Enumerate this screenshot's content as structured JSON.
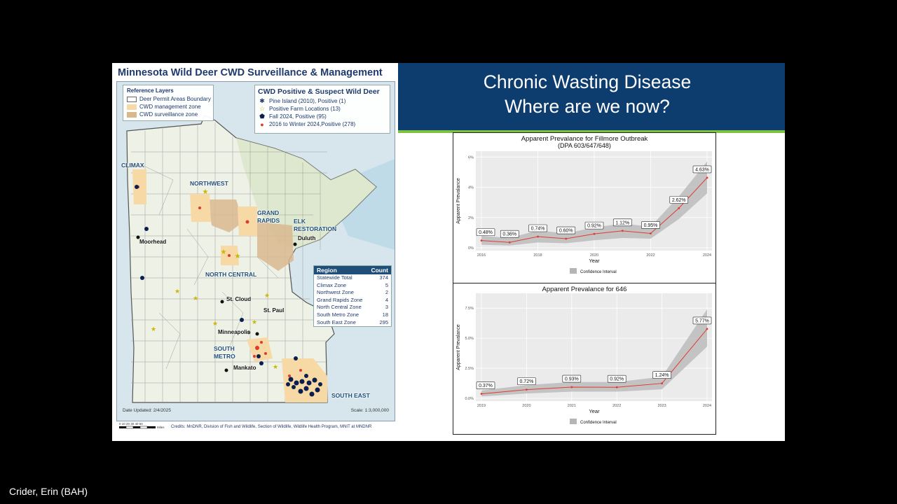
{
  "map": {
    "title": "Minnesota Wild Deer CWD Surveillance & Management",
    "reference_legend": {
      "title": "Reference Layers",
      "items": [
        {
          "label": "Deer Permit Areas Boundary",
          "color": "#ffffff"
        },
        {
          "label": "CWD management zone",
          "color": "#f7d9a6"
        },
        {
          "label": "CWD surveillance zone",
          "color": "#d9b88f"
        }
      ]
    },
    "cwd_legend": {
      "title": "CWD Positive & Suspect Wild Deer",
      "items": [
        {
          "symbol": "✱",
          "label": "Pine Island (2010), Positive (1)",
          "color": "#1f3a6b"
        },
        {
          "symbol": "☆",
          "label": "Positive Farm Locations (13)",
          "color": "#c9b800"
        },
        {
          "symbol": "⬟",
          "label": "Fall 2024, Positive (95)",
          "color": "#0b1f4f"
        },
        {
          "symbol": "●",
          "label": "2016 to Winter 2024,Positive (278)",
          "color": "#e03a2f"
        }
      ]
    },
    "region_table": {
      "header": [
        "Region",
        "Count"
      ],
      "rows": [
        [
          "Statewide Total",
          "374"
        ],
        [
          "Climax Zone",
          "5"
        ],
        [
          "Northwest Zone",
          "2"
        ],
        [
          "Grand Rapids Zone",
          "4"
        ],
        [
          "North Central Zone",
          "3"
        ],
        [
          "South Metro Zone",
          "18"
        ],
        [
          "South East Zone",
          "295"
        ]
      ]
    },
    "zone_labels": {
      "climax": "CLIMAX",
      "northwest": "NORTHWEST",
      "grand_rapids_1": "GRAND",
      "grand_rapids_2": "RAPIDS",
      "elk_1": "ELK",
      "elk_2": "RESTORATION",
      "north_central": "NORTH CENTRAL",
      "south_metro_1": "SOUTH",
      "south_metro_2": "METRO",
      "south_east": "SOUTH EAST"
    },
    "cities": {
      "moorhead": "Moorhead",
      "duluth": "Duluth",
      "st_cloud": "St. Cloud",
      "st_paul": "St. Paul",
      "minneapolis": "Minneapolis",
      "mankato": "Mankato"
    },
    "date_updated": "Date Updated: 2/4/2025",
    "scale": "Scale: 1:3,000,000",
    "scalebar_ticks": "0 10 20 30 40 50",
    "scalebar_unit": "Miles",
    "credits": "Credits: MnDNR, Division of Fish and Wildlife, Section of Wildlife, Wildlife Health Program, MNIT at MNDNR"
  },
  "slide": {
    "title_line1": "Chronic Wasting Disease",
    "title_line2": "Where are we now?",
    "header_color": "#0d3c6e",
    "accent_color": "#7cc242"
  },
  "chart_data": [
    {
      "type": "line",
      "title": "Apparent Prevalance for Fillmore Outbreak",
      "subtitle": "(DPA 603/647/648)",
      "xlabel": "Year",
      "ylabel": "Apparent Prevalance",
      "x": [
        2016,
        2017,
        2018,
        2019,
        2020,
        2021,
        2022,
        2023,
        2024
      ],
      "values": [
        0.48,
        0.36,
        0.74,
        0.6,
        0.92,
        1.12,
        0.95,
        2.62,
        4.63
      ],
      "data_labels": [
        "0.48%",
        "0.36%",
        "0.74%",
        "0.60%",
        "0.92%",
        "1.12%",
        "0.95%",
        "2.62%",
        "4.63%"
      ],
      "ci_lower": [
        0.2,
        0.15,
        0.35,
        0.3,
        0.5,
        0.65,
        0.6,
        1.9,
        3.6
      ],
      "ci_upper": [
        0.8,
        0.65,
        1.15,
        0.95,
        1.35,
        1.6,
        1.4,
        3.4,
        5.7
      ],
      "xticks": [
        "2016",
        "2018",
        "2020",
        "2022",
        "2024"
      ],
      "yticks": [
        "0%",
        "2%",
        "4%",
        "6%"
      ],
      "ylim": [
        0,
        6.2
      ],
      "xlim": [
        2016,
        2024
      ],
      "legend": "Confidence Interval",
      "legend_position": "bottom",
      "grid": true,
      "line_color": "#e03a2f"
    },
    {
      "type": "line",
      "title": "Apparent Prevalance for 646",
      "xlabel": "Year",
      "ylabel": "Apparent Prevalance",
      "x": [
        2019,
        2020,
        2021,
        2022,
        2023,
        2024
      ],
      "values": [
        0.37,
        0.72,
        0.93,
        0.92,
        1.24,
        5.77
      ],
      "data_labels": [
        "0.37%",
        "0.72%",
        "0.93%",
        "0.92%",
        "1.24%",
        "5.77%"
      ],
      "ci_lower": [
        0.15,
        0.4,
        0.55,
        0.55,
        0.75,
        4.3
      ],
      "ci_upper": [
        0.65,
        1.1,
        1.35,
        1.35,
        1.8,
        7.4
      ],
      "xticks": [
        "2019",
        "2020",
        "2021",
        "2022",
        "2023",
        "2024"
      ],
      "yticks": [
        "0.0%",
        "2.5%",
        "5.0%",
        "7.5%"
      ],
      "ylim": [
        0,
        8.5
      ],
      "xlim": [
        2019,
        2024
      ],
      "legend": "Confidence Interval",
      "legend_position": "bottom",
      "grid": true,
      "line_color": "#e03a2f"
    }
  ],
  "meeting": {
    "speaker_name": "Crider, Erin (BAH)"
  }
}
